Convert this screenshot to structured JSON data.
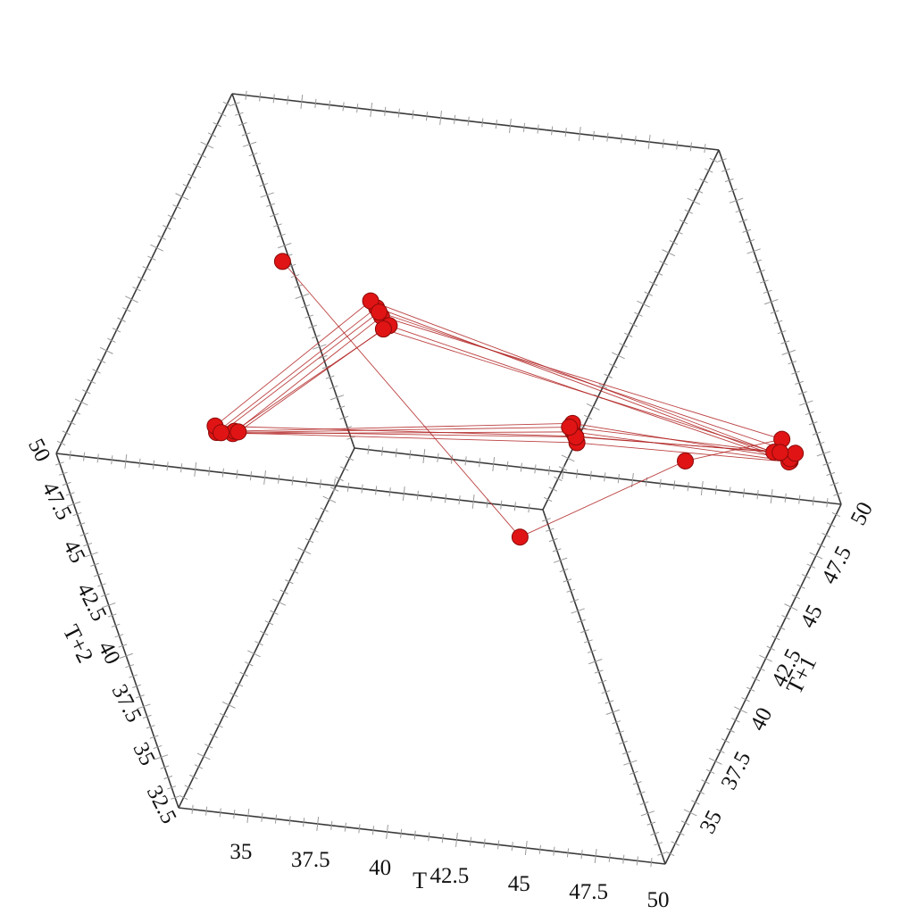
{
  "chart_data": {
    "type": "scatter",
    "subtype": "3d-phase-space",
    "title": "",
    "axes": {
      "x": {
        "label": "T",
        "range": [
          32.5,
          50
        ],
        "ticks": [
          "35",
          "37.5",
          "40",
          "42.5",
          "45",
          "47.5",
          "50"
        ]
      },
      "y": {
        "label": "T+1",
        "range": [
          32.5,
          50
        ],
        "ticks": [
          "35",
          "37.5",
          "40",
          "42.5",
          "45",
          "47.5",
          "50"
        ]
      },
      "z": {
        "label": "T+2",
        "range": [
          32.5,
          50
        ],
        "ticks": [
          "50",
          "47.5",
          "45",
          "42.5",
          "40",
          "37.5",
          "35",
          "32.5"
        ]
      }
    },
    "grid": false,
    "colors": {
      "points": "#e01414",
      "lines": "#b02020",
      "box": "#3a3a3a"
    },
    "series": [
      {
        "points": [
          [
            36.2,
            43.8,
            48.6
          ],
          [
            44.1,
            39.8,
            40.3
          ],
          [
            48.0,
            44.9,
            39.5
          ],
          [
            49.2,
            49.1,
            36.5
          ],
          [
            35.6,
            49.4,
            40.1
          ],
          [
            36.8,
            36.5,
            47.6
          ],
          [
            49.5,
            36.6,
            49.6
          ],
          [
            49.1,
            49.3,
            35.2
          ],
          [
            35.4,
            49.6,
            40.3
          ],
          [
            36.4,
            36.2,
            47.9
          ],
          [
            49.7,
            36.3,
            49.4
          ],
          [
            49.3,
            48.9,
            35.6
          ],
          [
            35.9,
            49.2,
            39.9
          ],
          [
            36.7,
            36.8,
            47.4
          ],
          [
            49.4,
            36.9,
            49.7
          ],
          [
            49.0,
            49.5,
            35.1
          ],
          [
            35.2,
            49.7,
            40.5
          ],
          [
            36.3,
            36.4,
            48.0
          ],
          [
            49.6,
            36.5,
            49.5
          ],
          [
            48.8,
            49.0,
            35.9
          ],
          [
            35.7,
            49.1,
            39.8
          ],
          [
            36.9,
            36.7,
            47.5
          ],
          [
            49.8,
            36.2,
            49.8
          ],
          [
            49.2,
            49.6,
            35.3
          ],
          [
            35.5,
            49.5,
            40.2
          ],
          [
            36.5,
            36.3,
            47.8
          ],
          [
            49.3,
            36.8,
            49.6
          ],
          [
            48.9,
            49.2,
            35.7
          ]
        ]
      }
    ]
  }
}
